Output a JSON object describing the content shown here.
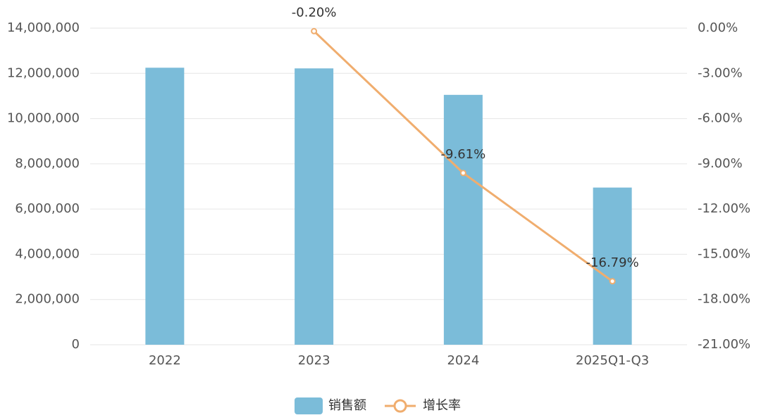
{
  "chart_data": {
    "type": "bar",
    "categories": [
      "2022",
      "2023",
      "2024",
      "2025Q1-Q3"
    ],
    "series": [
      {
        "name": "销售额",
        "type": "bar",
        "color": "#7bbcd9",
        "values": [
          12250000,
          12220000,
          11050000,
          6950000
        ]
      },
      {
        "name": "增长率",
        "type": "line",
        "axis": "y2",
        "color": "#f0ad6e",
        "values": [
          null,
          -0.2,
          -9.61,
          -16.79
        ],
        "value_labels": [
          null,
          "-0.20%",
          "-9.61%",
          "-16.79%"
        ]
      }
    ],
    "ylim": [
      0,
      14000000
    ],
    "yticks": [
      0,
      {
        "value": 2000000,
        "label": "2,000,000"
      },
      {
        "value": 4000000,
        "label": "4,000,000"
      },
      {
        "value": 6000000,
        "label": "6,000,000"
      },
      {
        "value": 8000000,
        "label": "8,000,000"
      },
      {
        "value": 10000000,
        "label": "10,000,000"
      },
      {
        "value": 12000000,
        "label": "12,000,000"
      },
      {
        "value": 14000000,
        "label": "14,000,000"
      }
    ],
    "y2lim": [
      -21,
      0
    ],
    "y2ticks": [
      {
        "value": 0,
        "label": "0.00%"
      },
      {
        "value": -3,
        "label": "-3.00%"
      },
      {
        "value": -6,
        "label": "-6.00%"
      },
      {
        "value": -9,
        "label": "-9.00%"
      },
      {
        "value": -12,
        "label": "-12.00%"
      },
      {
        "value": -15,
        "label": "-15.00%"
      },
      {
        "value": -18,
        "label": "-18.00%"
      },
      {
        "value": -21,
        "label": "-21.00%"
      }
    ],
    "grid": true,
    "legend": "bottom"
  }
}
